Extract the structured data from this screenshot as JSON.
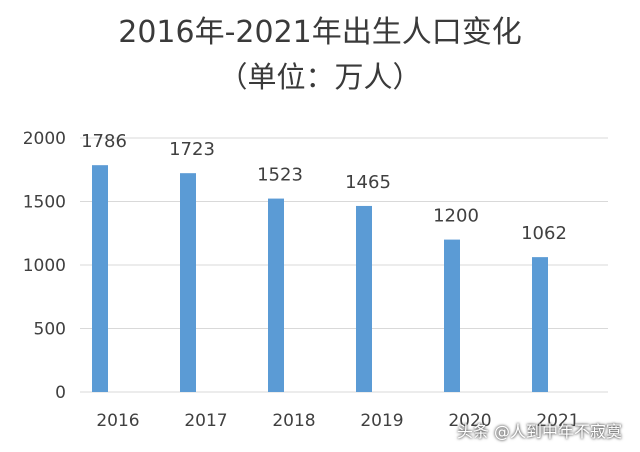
{
  "chart_data": {
    "type": "bar",
    "title": "2016年-2021年出生人口变化",
    "subtitle": "（单位：万人）",
    "categories": [
      "2016",
      "2017",
      "2018",
      "2019",
      "2020",
      "2021"
    ],
    "values": [
      1786,
      1723,
      1523,
      1465,
      1200,
      1062
    ],
    "data_labels": [
      "1786",
      "1723",
      "1523",
      "1465",
      "1200",
      "1062"
    ],
    "ylim": [
      0,
      2000
    ],
    "yticks": [
      "0",
      "500",
      "1000",
      "1500",
      "2000"
    ],
    "grid": true,
    "bar_color": "#5b9bd5",
    "grid_color": "#d9d9d9"
  },
  "watermark": "头条 @人到中年不寂寞"
}
